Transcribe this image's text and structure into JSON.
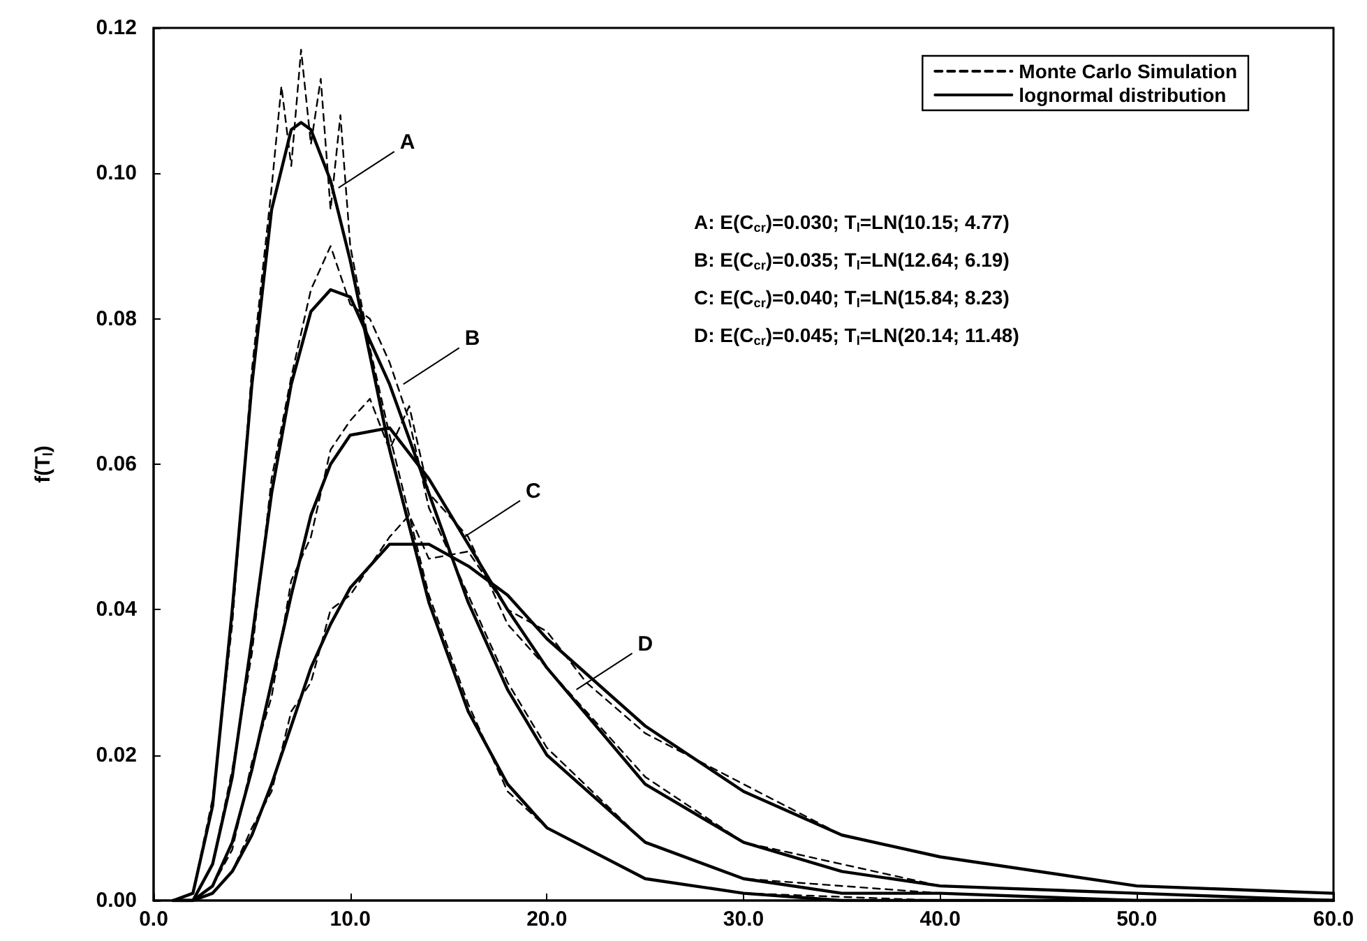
{
  "chart_data": {
    "type": "line",
    "ylabel": "f(T$_{l}$)",
    "xlim": [
      0,
      60
    ],
    "ylim": [
      0,
      0.12
    ],
    "xticks": [
      {
        "value": 0,
        "label": "0.0"
      },
      {
        "value": 10,
        "label": "10.0"
      },
      {
        "value": 20,
        "label": "20.0"
      },
      {
        "value": 30,
        "label": "30.0"
      },
      {
        "value": 40,
        "label": "40.0"
      },
      {
        "value": 50,
        "label": "50.0"
      },
      {
        "value": 60,
        "label": "60.0"
      }
    ],
    "yticks": [
      {
        "value": 0,
        "label": "0.00"
      },
      {
        "value": 0.02,
        "label": "0.02"
      },
      {
        "value": 0.04,
        "label": "0.04"
      },
      {
        "value": 0.06,
        "label": "0.06"
      },
      {
        "value": 0.08,
        "label": "0.08"
      },
      {
        "value": 0.1,
        "label": "0.10"
      },
      {
        "value": 0.12,
        "label": "0.12"
      }
    ],
    "grid": false,
    "legend": "top right",
    "marker": "none",
    "series": [
      {
        "name": "Monte Carlo Simulation",
        "color": "#000000",
        "line_style": "dashed",
        "x": [
          2,
          3,
          4,
          5,
          6,
          6.5,
          7,
          7.5,
          8,
          8.5,
          9,
          9.5,
          10,
          11,
          12,
          14,
          16,
          18,
          20,
          25,
          30,
          40
        ],
        "values": [
          0.001,
          0.014,
          0.038,
          0.073,
          0.098,
          0.112,
          0.101,
          0.117,
          0.104,
          0.113,
          0.095,
          0.108,
          0.09,
          0.076,
          0.064,
          0.042,
          0.027,
          0.015,
          0.01,
          0.003,
          0.001,
          0
        ]
      },
      {
        "color": "#000000",
        "line_style": "dashed",
        "x": [
          2,
          3,
          4,
          5,
          6,
          7,
          8,
          9,
          10,
          11,
          12,
          13,
          14,
          16,
          18,
          20,
          25,
          30,
          40,
          50
        ],
        "values": [
          0,
          0.005,
          0.018,
          0.034,
          0.058,
          0.072,
          0.084,
          0.09,
          0.082,
          0.08,
          0.074,
          0.066,
          0.054,
          0.042,
          0.03,
          0.021,
          0.008,
          0.003,
          0.001,
          0
        ]
      },
      {
        "color": "#000000",
        "line_style": "dashed",
        "x": [
          3,
          4,
          5,
          6,
          7,
          8,
          9,
          10,
          11,
          12,
          13,
          14,
          15,
          16,
          18,
          20,
          25,
          30,
          40,
          50,
          60
        ],
        "values": [
          0.002,
          0.007,
          0.019,
          0.028,
          0.044,
          0.05,
          0.062,
          0.066,
          0.069,
          0.062,
          0.068,
          0.056,
          0.053,
          0.05,
          0.038,
          0.032,
          0.017,
          0.008,
          0.002,
          0.001,
          0
        ]
      },
      {
        "color": "#000000",
        "line_style": "dashed",
        "x": [
          3,
          4,
          5,
          6,
          7,
          8,
          9,
          10,
          12,
          13,
          14,
          16,
          18,
          20,
          22,
          25,
          30,
          35,
          40,
          50,
          60
        ],
        "values": [
          0.001,
          0.004,
          0.01,
          0.015,
          0.026,
          0.03,
          0.04,
          0.042,
          0.05,
          0.053,
          0.047,
          0.048,
          0.04,
          0.037,
          0.03,
          0.023,
          0.016,
          0.009,
          0.006,
          0.002,
          0.001
        ]
      },
      {
        "name": "lognormal distribution",
        "color": "#000000",
        "line_style": "solid",
        "x": [
          1,
          2,
          3,
          4,
          5,
          6,
          7,
          7.5,
          8,
          9,
          10,
          12,
          14,
          16,
          18,
          20,
          25,
          30,
          35,
          40,
          50,
          60
        ],
        "values": [
          0,
          0.001,
          0.013,
          0.04,
          0.071,
          0.095,
          0.106,
          0.107,
          0.106,
          0.099,
          0.088,
          0.062,
          0.041,
          0.026,
          0.016,
          0.01,
          0.003,
          0.001,
          0,
          0,
          0,
          0
        ]
      },
      {
        "color": "#000000",
        "line_style": "solid",
        "x": [
          1,
          2,
          3,
          4,
          5,
          6,
          7,
          8,
          9,
          10,
          12,
          14,
          16,
          18,
          20,
          25,
          30,
          35,
          40,
          50,
          60
        ],
        "values": [
          0,
          0,
          0.005,
          0.017,
          0.036,
          0.056,
          0.071,
          0.081,
          0.084,
          0.083,
          0.071,
          0.056,
          0.041,
          0.029,
          0.02,
          0.008,
          0.003,
          0.001,
          0.001,
          0,
          0
        ]
      },
      {
        "color": "#000000",
        "line_style": "solid",
        "x": [
          1,
          2,
          3,
          4,
          5,
          6,
          7,
          8,
          9,
          10,
          12,
          14,
          16,
          18,
          20,
          25,
          30,
          35,
          40,
          50,
          60
        ],
        "values": [
          0,
          0,
          0.002,
          0.008,
          0.018,
          0.03,
          0.042,
          0.053,
          0.06,
          0.064,
          0.065,
          0.058,
          0.049,
          0.04,
          0.032,
          0.016,
          0.008,
          0.004,
          0.002,
          0.001,
          0
        ]
      },
      {
        "color": "#000000",
        "line_style": "solid",
        "x": [
          1,
          2,
          3,
          4,
          5,
          6,
          7,
          8,
          9,
          10,
          12,
          14,
          16,
          18,
          20,
          25,
          30,
          35,
          40,
          50,
          60
        ],
        "values": [
          0,
          0,
          0.001,
          0.004,
          0.009,
          0.016,
          0.024,
          0.032,
          0.038,
          0.043,
          0.049,
          0.049,
          0.046,
          0.042,
          0.036,
          0.024,
          0.015,
          0.009,
          0.006,
          0.002,
          0.001
        ]
      }
    ],
    "annotations": [
      {
        "text": "A",
        "x": 9.4,
        "y": 0.098
      },
      {
        "text": "B",
        "x": 12.7,
        "y": 0.071
      },
      {
        "text": "C",
        "x": 15.8,
        "y": 0.05
      },
      {
        "text": "D",
        "x": 21.5,
        "y": 0.029
      },
      "A: E(C$_{cr}$)=0.030; T$_{l}$=LN(10.15; 4.77)",
      "B: E(C$_{cr}$)=0.035; T$_{l}$=LN(12.64; 6.19)",
      "C: E(C$_{cr}$)=0.040; T$_{l}$=LN(15.84; 8.23)",
      "D: E(C$_{cr}$)=0.045; T$_{l}$=LN(20.14; 11.48)"
    ]
  }
}
